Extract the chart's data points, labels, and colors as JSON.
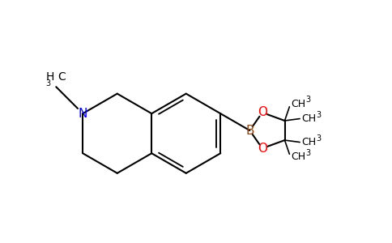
{
  "background_color": "#ffffff",
  "bond_color": "#000000",
  "nitrogen_color": "#0000ff",
  "oxygen_color": "#ff0000",
  "boron_color": "#8B4513",
  "line_width": 1.5,
  "figsize": [
    4.84,
    3.0
  ],
  "dpi": 100,
  "xlim": [
    0,
    9.5
  ],
  "ylim": [
    0,
    6.0
  ]
}
